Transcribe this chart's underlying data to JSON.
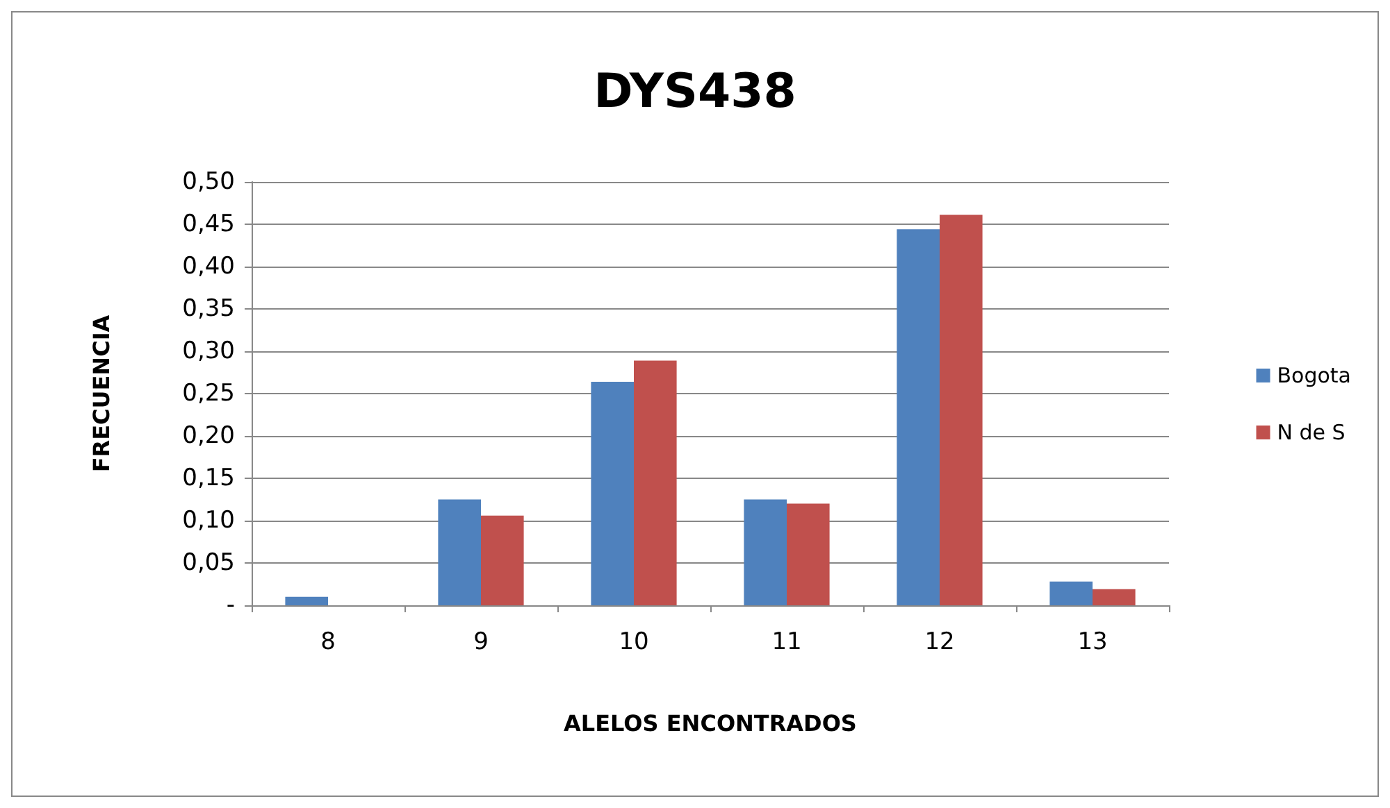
{
  "chart_data": {
    "type": "bar",
    "title": "DYS438",
    "xlabel": "ALELOS ENCONTRADOS",
    "ylabel": "FRECUENCIA",
    "categories": [
      "8",
      "9",
      "10",
      "11",
      "12",
      "13"
    ],
    "series": [
      {
        "name": "Bogota",
        "color": "#4f81bd",
        "values": [
          0.01,
          0.125,
          0.264,
          0.125,
          0.444,
          0.028
        ]
      },
      {
        "name": "N de S",
        "color": "#c0504d",
        "values": [
          0,
          0.106,
          0.289,
          0.12,
          0.461,
          0.019
        ]
      }
    ],
    "ylim": [
      0,
      0.5
    ],
    "yticks": [
      {
        "value": 0,
        "label": "-"
      },
      {
        "value": 0.05,
        "label": "0,05"
      },
      {
        "value": 0.1,
        "label": "0,10"
      },
      {
        "value": 0.15,
        "label": "0,15"
      },
      {
        "value": 0.2,
        "label": "0,20"
      },
      {
        "value": 0.25,
        "label": "0,25"
      },
      {
        "value": 0.3,
        "label": "0,30"
      },
      {
        "value": 0.35,
        "label": "0,35"
      },
      {
        "value": 0.4,
        "label": "0,40"
      },
      {
        "value": 0.45,
        "label": "0,45"
      },
      {
        "value": 0.5,
        "label": "0,50"
      }
    ],
    "grid": "y",
    "legend": "right"
  }
}
